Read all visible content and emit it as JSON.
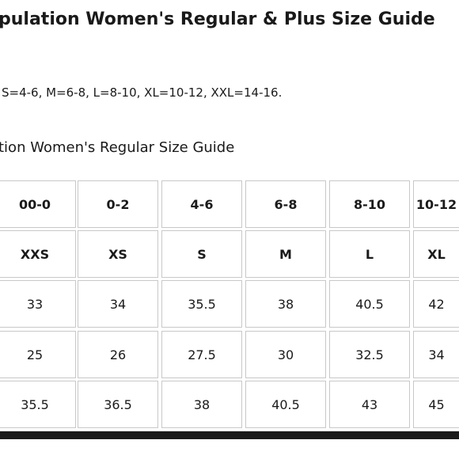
{
  "header": {
    "title": "pulation Women's Regular & Plus Size Guide",
    "note": "S=4-6, M=6-8, L=8-10, XL=10-12, XXL=14-16."
  },
  "table": {
    "title": "tion Women's Regular Size Guide",
    "rows": [
      [
        "00-0",
        "0-2",
        "4-6",
        "6-8",
        "8-10",
        "10-12"
      ],
      [
        "XXS",
        "XS",
        "S",
        "M",
        "L",
        "XL"
      ],
      [
        "33",
        "34",
        "35.5",
        "38",
        "40.5",
        "42"
      ],
      [
        "25",
        "26",
        "27.5",
        "30",
        "32.5",
        "34"
      ],
      [
        "35.5",
        "36.5",
        "38",
        "40.5",
        "43",
        "45"
      ]
    ]
  }
}
